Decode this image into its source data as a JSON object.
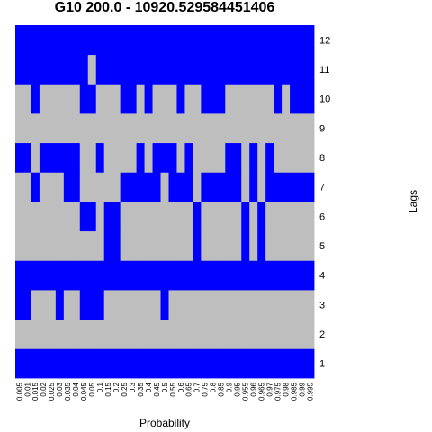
{
  "chart_data": {
    "type": "heatmap",
    "title": "G10 200.0 - 10920.529584451406",
    "xlabel": "Probability",
    "ylabel": "Lags",
    "x": [
      "0.005",
      "0.01",
      "0.015",
      "0.02",
      "0.025",
      "0.03",
      "0.035",
      "0.04",
      "0.045",
      "0.05",
      "0.1",
      "0.15",
      "0.2",
      "0.25",
      "0.3",
      "0.35",
      "0.4",
      "0.45",
      "0.5",
      "0.55",
      "0.6",
      "0.65",
      "0.7",
      "0.75",
      "0.8",
      "0.85",
      "0.9",
      "0.95",
      "0.955",
      "0.96",
      "0.965",
      "0.97",
      "0.975",
      "0.98",
      "0.985",
      "0.99",
      "0.995"
    ],
    "y": [
      1,
      2,
      3,
      4,
      5,
      6,
      7,
      8,
      9,
      10,
      11,
      12
    ],
    "colors": {
      "selected": "#0000ff",
      "unselected": "#bebebe"
    },
    "values": [
      [
        1,
        1,
        1,
        1,
        1,
        1,
        1,
        1,
        1,
        1,
        1,
        1,
        1,
        1,
        1,
        1,
        1,
        1,
        1,
        1,
        1,
        1,
        1,
        1,
        1,
        1,
        1,
        1,
        1,
        1,
        1,
        1,
        1,
        1,
        1,
        1,
        1
      ],
      [
        0,
        0,
        0,
        0,
        0,
        0,
        0,
        0,
        0,
        0,
        0,
        0,
        0,
        0,
        0,
        0,
        0,
        0,
        0,
        0,
        0,
        0,
        0,
        0,
        0,
        0,
        0,
        0,
        0,
        0,
        0,
        0,
        0,
        0,
        0,
        0,
        0
      ],
      [
        1,
        1,
        0,
        0,
        0,
        1,
        0,
        0,
        1,
        1,
        1,
        0,
        0,
        0,
        0,
        0,
        0,
        0,
        1,
        0,
        0,
        0,
        0,
        0,
        0,
        0,
        0,
        0,
        0,
        0,
        0,
        0,
        0,
        0,
        0,
        0,
        0
      ],
      [
        1,
        1,
        1,
        1,
        1,
        1,
        1,
        1,
        1,
        1,
        1,
        1,
        1,
        1,
        1,
        1,
        1,
        1,
        1,
        1,
        1,
        1,
        1,
        1,
        1,
        1,
        1,
        1,
        1,
        1,
        1,
        1,
        1,
        1,
        1,
        1,
        1
      ],
      [
        0,
        0,
        0,
        0,
        0,
        0,
        0,
        0,
        0,
        0,
        0,
        1,
        1,
        0,
        0,
        0,
        0,
        0,
        0,
        0,
        0,
        0,
        1,
        0,
        0,
        0,
        0,
        0,
        1,
        0,
        1,
        0,
        0,
        0,
        0,
        0,
        0
      ],
      [
        0,
        0,
        0,
        0,
        0,
        0,
        0,
        0,
        1,
        1,
        0,
        1,
        1,
        0,
        0,
        0,
        0,
        0,
        0,
        0,
        0,
        0,
        1,
        0,
        0,
        0,
        0,
        0,
        1,
        0,
        1,
        0,
        0,
        0,
        0,
        0,
        0
      ],
      [
        0,
        0,
        1,
        0,
        0,
        0,
        1,
        1,
        0,
        0,
        0,
        0,
        0,
        1,
        1,
        1,
        1,
        1,
        0,
        1,
        1,
        1,
        0,
        1,
        1,
        1,
        1,
        1,
        0,
        1,
        0,
        1,
        1,
        1,
        1,
        1,
        1
      ],
      [
        1,
        1,
        0,
        1,
        1,
        1,
        1,
        1,
        0,
        0,
        1,
        0,
        0,
        0,
        0,
        1,
        0,
        1,
        1,
        1,
        0,
        1,
        0,
        0,
        0,
        0,
        1,
        1,
        0,
        1,
        0,
        1,
        0,
        0,
        0,
        0,
        0
      ],
      [
        0,
        0,
        0,
        0,
        0,
        0,
        0,
        0,
        0,
        0,
        0,
        0,
        0,
        0,
        0,
        0,
        0,
        0,
        0,
        0,
        0,
        0,
        0,
        0,
        0,
        0,
        0,
        0,
        0,
        0,
        0,
        0,
        0,
        0,
        0,
        0,
        0
      ],
      [
        0,
        0,
        1,
        0,
        0,
        0,
        0,
        0,
        1,
        1,
        0,
        0,
        0,
        1,
        1,
        0,
        1,
        0,
        0,
        0,
        1,
        0,
        0,
        1,
        1,
        1,
        0,
        0,
        0,
        0,
        0,
        0,
        1,
        0,
        1,
        1,
        1
      ],
      [
        1,
        1,
        1,
        1,
        1,
        1,
        1,
        1,
        1,
        0,
        1,
        1,
        1,
        1,
        1,
        1,
        1,
        1,
        1,
        1,
        1,
        1,
        1,
        1,
        1,
        1,
        1,
        1,
        1,
        1,
        1,
        1,
        1,
        1,
        1,
        1,
        1
      ],
      [
        1,
        1,
        1,
        1,
        1,
        1,
        1,
        1,
        1,
        1,
        1,
        1,
        1,
        1,
        1,
        1,
        1,
        1,
        1,
        1,
        1,
        1,
        1,
        1,
        1,
        1,
        1,
        1,
        1,
        1,
        1,
        1,
        1,
        1,
        1,
        1,
        1
      ]
    ]
  }
}
